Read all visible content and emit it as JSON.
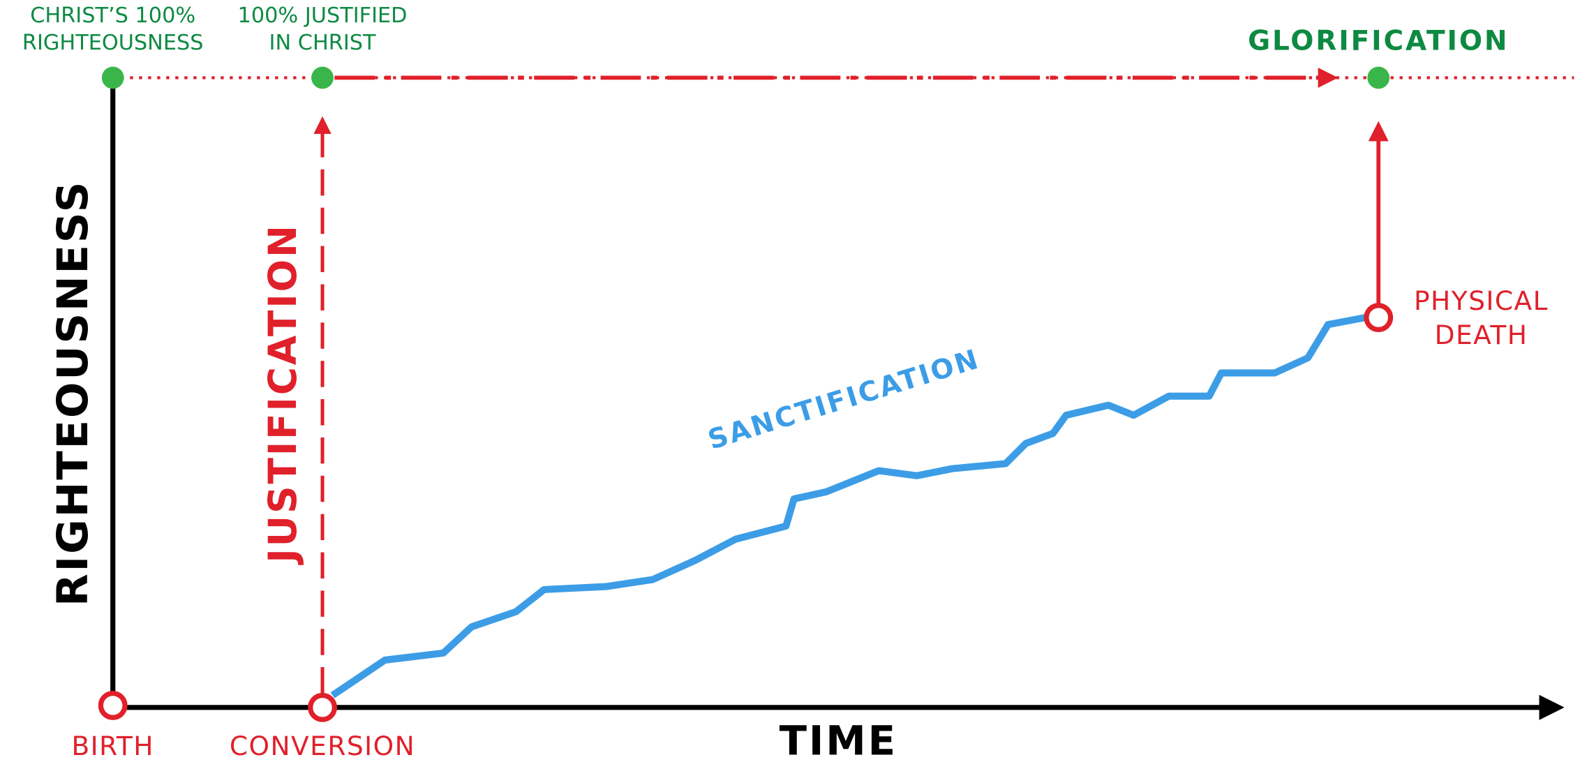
{
  "axes": {
    "y_label": "RIGHTEOUSNESS",
    "x_label": "TIME"
  },
  "top_labels": {
    "christ": [
      "CHRIST’S 100%",
      "RIGHTEOUSNESS"
    ],
    "justified": [
      "100% JUSTIFIED",
      "IN CHRIST"
    ],
    "glorification": "GLORIFICATION"
  },
  "stages": {
    "justification": "JUSTIFICATION",
    "sanctification": "SANCTIFICATION"
  },
  "events": {
    "birth": "BIRTH",
    "conversion": "CONVERSION",
    "death": [
      "PHYSICAL",
      "DEATH"
    ]
  }
}
